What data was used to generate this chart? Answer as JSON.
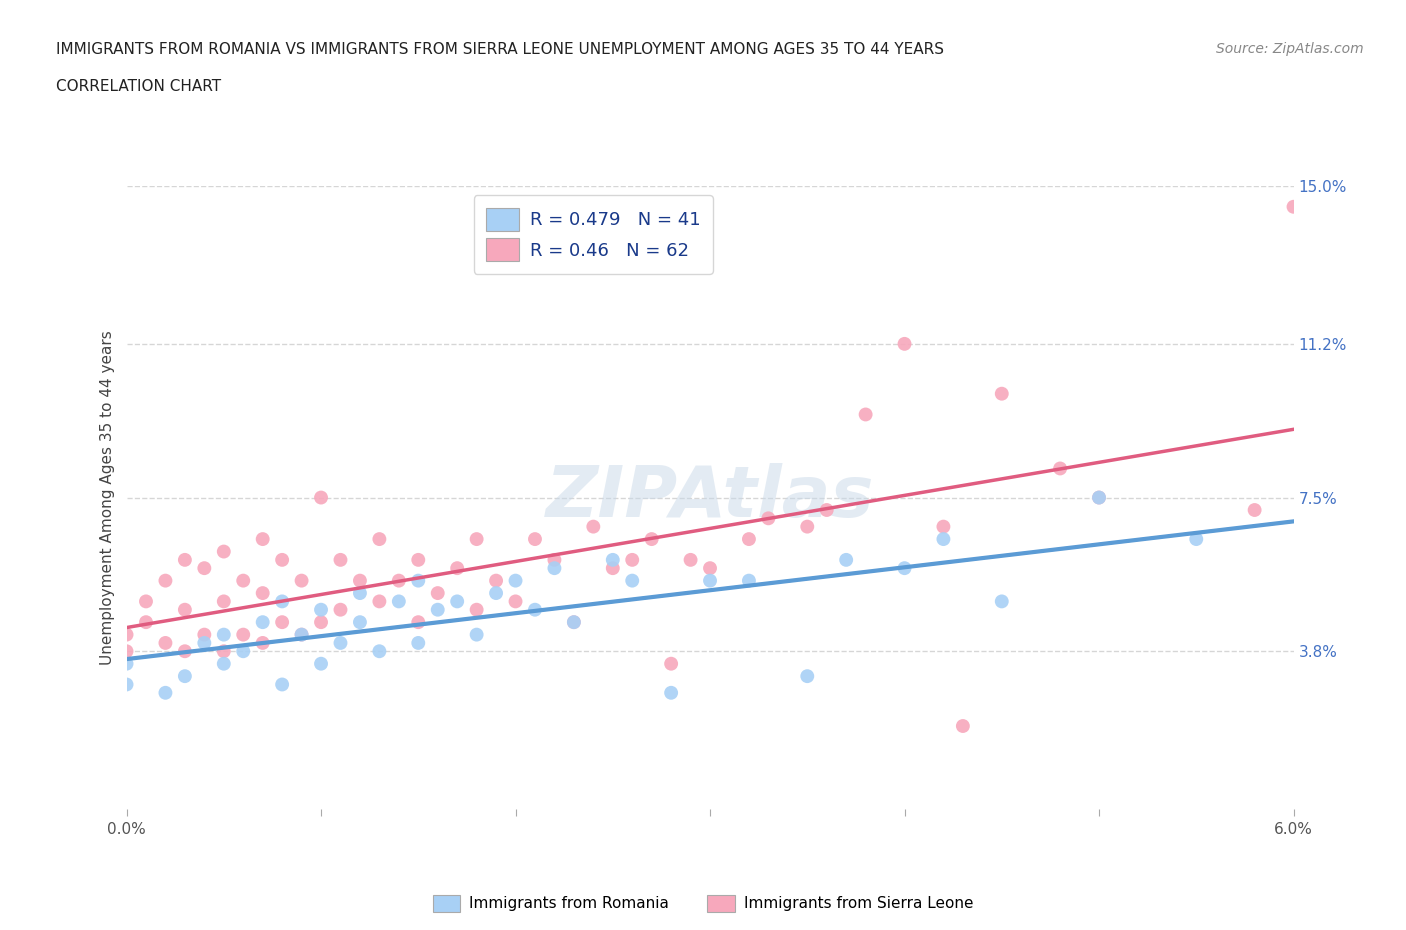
{
  "title_line1": "IMMIGRANTS FROM ROMANIA VS IMMIGRANTS FROM SIERRA LEONE UNEMPLOYMENT AMONG AGES 35 TO 44 YEARS",
  "title_line2": "CORRELATION CHART",
  "source_text": "Source: ZipAtlas.com",
  "ylabel": "Unemployment Among Ages 35 to 44 years",
  "xlim": [
    0.0,
    0.06
  ],
  "ylim": [
    0.0,
    0.15
  ],
  "xtick_positions": [
    0.0,
    0.01,
    0.02,
    0.03,
    0.04,
    0.05,
    0.06
  ],
  "xticklabels": [
    "0.0%",
    "",
    "",
    "",
    "",
    "",
    "6.0%"
  ],
  "ytick_labels_right": [
    "3.8%",
    "7.5%",
    "11.2%",
    "15.0%"
  ],
  "ytick_vals_right": [
    0.038,
    0.075,
    0.112,
    0.15
  ],
  "romania_color": "#A8D0F5",
  "sierra_leone_color": "#F7A8BC",
  "romania_R": 0.479,
  "romania_N": 41,
  "sierra_leone_R": 0.46,
  "sierra_leone_N": 62,
  "romania_scatter_x": [
    0.0,
    0.0,
    0.002,
    0.003,
    0.004,
    0.005,
    0.005,
    0.006,
    0.007,
    0.008,
    0.008,
    0.009,
    0.01,
    0.01,
    0.011,
    0.012,
    0.012,
    0.013,
    0.014,
    0.015,
    0.015,
    0.016,
    0.017,
    0.018,
    0.019,
    0.02,
    0.021,
    0.022,
    0.023,
    0.025,
    0.026,
    0.028,
    0.03,
    0.032,
    0.035,
    0.037,
    0.04,
    0.042,
    0.045,
    0.05,
    0.055
  ],
  "romania_scatter_y": [
    0.03,
    0.035,
    0.028,
    0.032,
    0.04,
    0.035,
    0.042,
    0.038,
    0.045,
    0.03,
    0.05,
    0.042,
    0.035,
    0.048,
    0.04,
    0.045,
    0.052,
    0.038,
    0.05,
    0.04,
    0.055,
    0.048,
    0.05,
    0.042,
    0.052,
    0.055,
    0.048,
    0.058,
    0.045,
    0.06,
    0.055,
    0.028,
    0.055,
    0.055,
    0.032,
    0.06,
    0.058,
    0.065,
    0.05,
    0.075,
    0.065
  ],
  "sierra_leone_scatter_x": [
    0.0,
    0.0,
    0.001,
    0.001,
    0.002,
    0.002,
    0.003,
    0.003,
    0.003,
    0.004,
    0.004,
    0.005,
    0.005,
    0.005,
    0.006,
    0.006,
    0.007,
    0.007,
    0.007,
    0.008,
    0.008,
    0.009,
    0.009,
    0.01,
    0.01,
    0.011,
    0.011,
    0.012,
    0.013,
    0.013,
    0.014,
    0.015,
    0.015,
    0.016,
    0.017,
    0.018,
    0.018,
    0.019,
    0.02,
    0.021,
    0.022,
    0.023,
    0.024,
    0.025,
    0.026,
    0.027,
    0.028,
    0.029,
    0.03,
    0.032,
    0.033,
    0.035,
    0.036,
    0.038,
    0.04,
    0.042,
    0.043,
    0.045,
    0.048,
    0.05,
    0.058,
    0.06
  ],
  "sierra_leone_scatter_y": [
    0.038,
    0.042,
    0.045,
    0.05,
    0.04,
    0.055,
    0.038,
    0.048,
    0.06,
    0.042,
    0.058,
    0.038,
    0.05,
    0.062,
    0.042,
    0.055,
    0.04,
    0.052,
    0.065,
    0.045,
    0.06,
    0.042,
    0.055,
    0.045,
    0.075,
    0.048,
    0.06,
    0.055,
    0.05,
    0.065,
    0.055,
    0.045,
    0.06,
    0.052,
    0.058,
    0.048,
    0.065,
    0.055,
    0.05,
    0.065,
    0.06,
    0.045,
    0.068,
    0.058,
    0.06,
    0.065,
    0.035,
    0.06,
    0.058,
    0.065,
    0.07,
    0.068,
    0.072,
    0.095,
    0.112,
    0.068,
    0.02,
    0.1,
    0.082,
    0.075,
    0.072,
    0.145
  ],
  "romania_trendline_color": "#5B9BD5",
  "sierra_leone_trendline_color": "#E05C80",
  "background_color": "#FFFFFF",
  "plot_bg_color": "#FFFFFF",
  "grid_color": "#CCCCCC",
  "watermark_color": "#C8D8E8",
  "watermark_alpha": 0.5
}
